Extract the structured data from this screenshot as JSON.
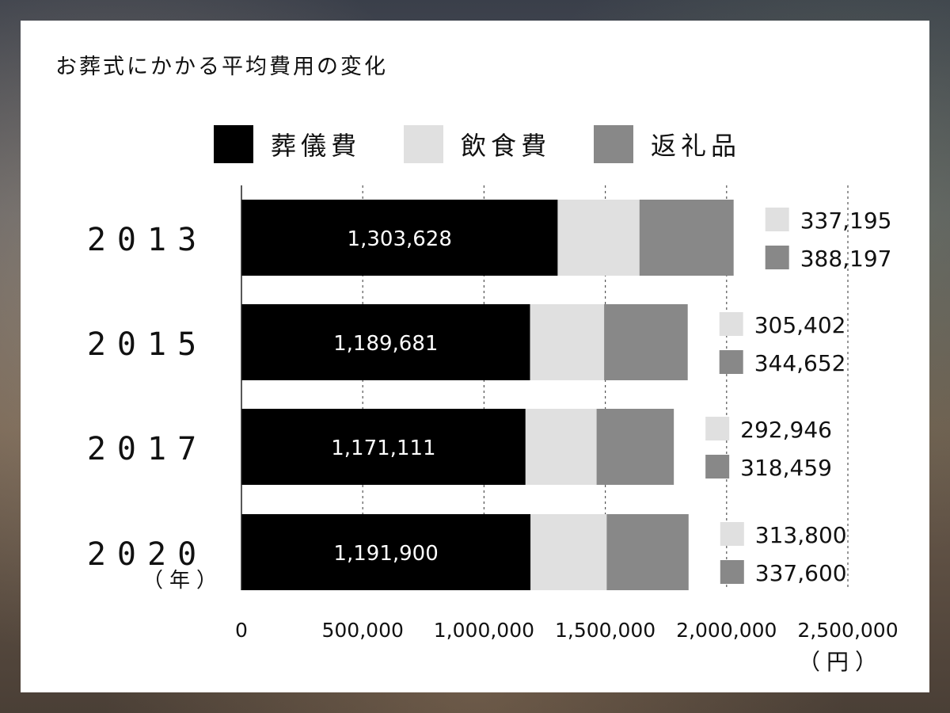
{
  "title": "お葬式にかかる平均費用の変化",
  "chart_data": {
    "type": "bar",
    "orientation": "horizontal",
    "stacked": true,
    "categories": [
      "2013",
      "2015",
      "2017",
      "2020"
    ],
    "series": [
      {
        "name": "葬儀費",
        "color": "#000000",
        "values": [
          1303628,
          1189681,
          1171111,
          1191900
        ]
      },
      {
        "name": "飲食費",
        "color": "#e0e0e0",
        "values": [
          337195,
          305402,
          292946,
          313800
        ]
      },
      {
        "name": "返礼品",
        "color": "#888888",
        "values": [
          388197,
          344652,
          318459,
          337600
        ]
      }
    ],
    "data_labels": {
      "葬儀費": [
        "1,303,628",
        "1,189,681",
        "1,171,111",
        "1,191,900"
      ],
      "飲食費": [
        "337,195",
        "305,402",
        "292,946",
        "313,800"
      ],
      "返礼品": [
        "388,197",
        "344,652",
        "318,459",
        "337,600"
      ]
    },
    "xlim": [
      0,
      2500000
    ],
    "xticks": [
      0,
      500000,
      1000000,
      1500000,
      2000000,
      2500000
    ],
    "xtick_labels": [
      "0",
      "500,000",
      "1,000,000",
      "1,500,000",
      "2,000,000",
      "2,500,000"
    ],
    "x_unit": "（円）",
    "y_unit": "（年）",
    "grid": "vertical-dashed",
    "legend_position": "top"
  }
}
